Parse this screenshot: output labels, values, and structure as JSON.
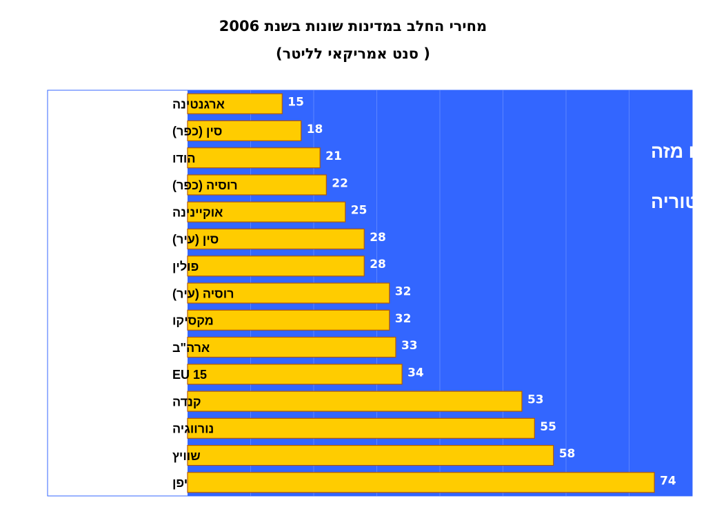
{
  "title": "מחירי החלב במדינות שונות בשנת 2006",
  "subtitle": "(סנט אמריקאי לליטר )",
  "chart_data": {
    "type": "bar",
    "orientation": "horizontal",
    "categories": [
      "ארגנטינה",
      "סין (כפר)",
      "הודו",
      "רוסיה (כפר)",
      "אוקיינינה",
      "סין (עיר)",
      "פולין",
      "רוסיה (עיר)",
      "מקסיקו",
      "ארה\"ב",
      "EU 15",
      "קנדה",
      "נורווגיה",
      "שוויץ",
      "יפן"
    ],
    "values": [
      15,
      18,
      21,
      22,
      25,
      28,
      28,
      32,
      32,
      33,
      34,
      53,
      55,
      58,
      74
    ],
    "xlim": [
      0,
      80
    ],
    "grid": true,
    "colors": {
      "plot_background": "#3366FF",
      "bar_fill": "#FFCC00",
      "bar_stroke": "#B35900",
      "gridline": "#5C85FF",
      "frame": "#3366FF"
    },
    "annotation": {
      "lines": [
        "תשכחו מזה",
        "זו היסטוריה"
      ]
    }
  }
}
